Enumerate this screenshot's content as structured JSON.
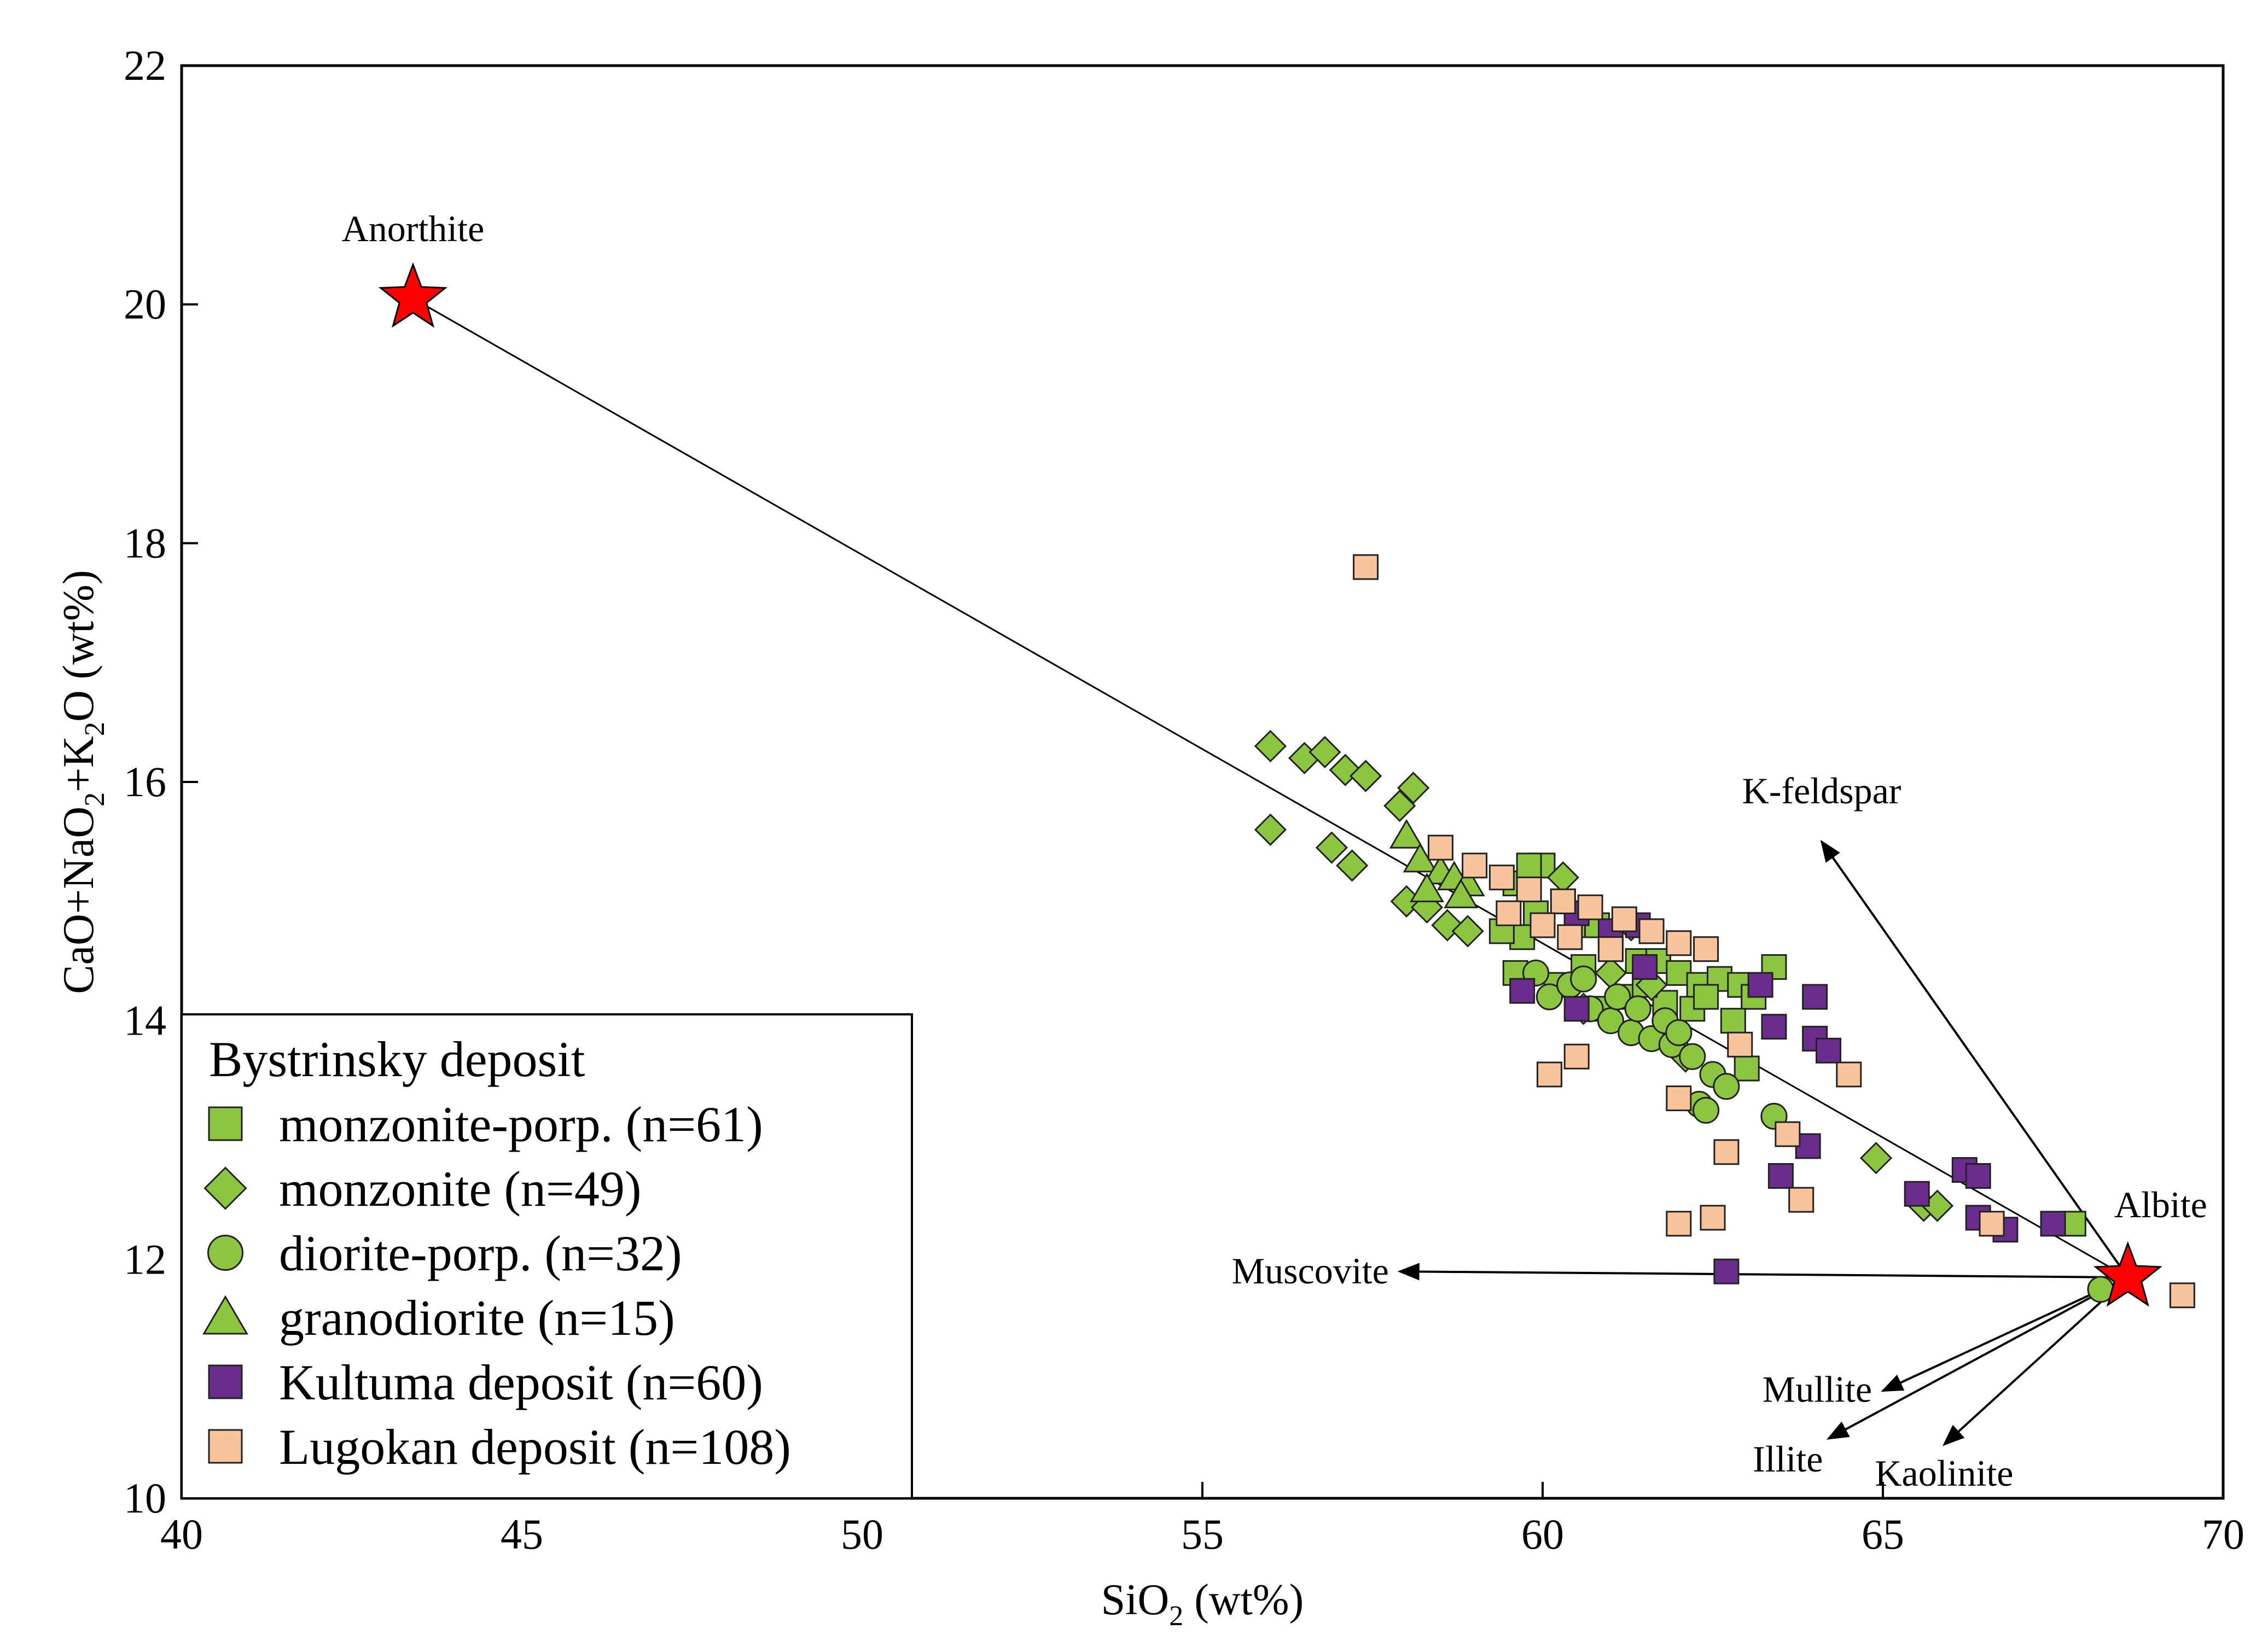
{
  "chart_data": {
    "type": "scatter",
    "title": "",
    "xlabel": "SiO2 (wt%)",
    "ylabel": "CaO+NaO2+K2O (wt%)",
    "xlabel_parts": [
      "SiO",
      "2",
      " (wt%)"
    ],
    "ylabel_parts": [
      "CaO+NaO",
      "2",
      "+K",
      "2",
      "O (wt%)"
    ],
    "xlim": [
      40,
      70
    ],
    "ylim": [
      10,
      22
    ],
    "xticks": [
      40,
      45,
      50,
      55,
      60,
      65,
      70
    ],
    "yticks": [
      10,
      12,
      14,
      16,
      18,
      20,
      22
    ],
    "grid": false,
    "legend_position": "bottom-left",
    "legend_title": "Bystrinsky deposit",
    "colors": {
      "green": "#8cc640",
      "purple": "#6a2d8c",
      "peach": "#f7c49b",
      "star": "#ff0000",
      "stroke": "#222222"
    },
    "reference_points": [
      {
        "name": "Anorthite",
        "x": 43.4,
        "y": 20.05
      },
      {
        "name": "Albite",
        "x": 68.6,
        "y": 11.85
      }
    ],
    "mixing_line": {
      "from": "Anorthite",
      "to": "Albite"
    },
    "vectors": [
      {
        "label": "K-feldspar",
        "to": [
          64.1,
          15.5
        ]
      },
      {
        "label": "Muscovite",
        "to": [
          57.9,
          11.9
        ]
      },
      {
        "label": "Mullite",
        "to": [
          65.0,
          10.9
        ]
      },
      {
        "label": "Illite",
        "to": [
          64.2,
          10.5
        ]
      },
      {
        "label": "Kaolinite",
        "to": [
          65.9,
          10.45
        ]
      }
    ],
    "series": [
      {
        "name": "monzonite-porp. (n=61)",
        "marker": "square",
        "color": "#8cc640",
        "points": [
          [
            59.6,
            15.15
          ],
          [
            60.0,
            15.3
          ],
          [
            59.8,
            15.3
          ],
          [
            60.3,
            15.0
          ],
          [
            59.9,
            14.9
          ],
          [
            60.5,
            14.8
          ],
          [
            60.8,
            14.8
          ],
          [
            59.7,
            14.7
          ],
          [
            59.4,
            14.75
          ],
          [
            61.0,
            14.6
          ],
          [
            61.4,
            14.5
          ],
          [
            61.7,
            14.5
          ],
          [
            62.0,
            14.4
          ],
          [
            62.3,
            14.3
          ],
          [
            62.6,
            14.35
          ],
          [
            62.9,
            14.3
          ],
          [
            63.1,
            14.2
          ],
          [
            63.4,
            14.45
          ],
          [
            60.6,
            14.45
          ],
          [
            60.2,
            14.3
          ],
          [
            61.2,
            14.2
          ],
          [
            61.8,
            14.15
          ],
          [
            62.2,
            14.1
          ],
          [
            62.8,
            14.0
          ],
          [
            63.0,
            13.6
          ],
          [
            59.6,
            14.4
          ],
          [
            60.9,
            14.1
          ],
          [
            61.5,
            14.3
          ],
          [
            62.4,
            14.2
          ],
          [
            67.8,
            12.3
          ]
        ]
      },
      {
        "name": "monzonite (n=49)",
        "marker": "diamond",
        "color": "#8cc640",
        "points": [
          [
            56.0,
            16.3
          ],
          [
            56.5,
            16.2
          ],
          [
            56.8,
            16.25
          ],
          [
            57.1,
            16.1
          ],
          [
            57.4,
            16.05
          ],
          [
            58.1,
            15.95
          ],
          [
            57.9,
            15.8
          ],
          [
            56.0,
            15.6
          ],
          [
            56.9,
            15.45
          ],
          [
            57.2,
            15.3
          ],
          [
            58.0,
            15.0
          ],
          [
            58.3,
            14.95
          ],
          [
            58.6,
            14.8
          ],
          [
            58.9,
            14.75
          ],
          [
            60.3,
            15.2
          ],
          [
            61.3,
            14.8
          ],
          [
            61.6,
            14.3
          ],
          [
            62.1,
            13.7
          ],
          [
            61.9,
            13.9
          ],
          [
            64.9,
            12.85
          ],
          [
            65.6,
            12.45
          ],
          [
            65.8,
            12.45
          ],
          [
            61.0,
            14.4
          ],
          [
            60.6,
            14.1
          ]
        ]
      },
      {
        "name": "diorite-porp. (n=32)",
        "marker": "circle",
        "color": "#8cc640",
        "points": [
          [
            59.9,
            14.4
          ],
          [
            60.1,
            14.2
          ],
          [
            60.4,
            14.3
          ],
          [
            60.7,
            14.1
          ],
          [
            61.0,
            14.0
          ],
          [
            61.3,
            13.9
          ],
          [
            61.6,
            13.85
          ],
          [
            61.9,
            13.8
          ],
          [
            62.2,
            13.7
          ],
          [
            62.5,
            13.55
          ],
          [
            62.7,
            13.45
          ],
          [
            62.3,
            13.3
          ],
          [
            62.4,
            13.25
          ],
          [
            63.4,
            13.2
          ],
          [
            60.6,
            14.35
          ],
          [
            61.1,
            14.2
          ],
          [
            61.4,
            14.1
          ],
          [
            61.8,
            14.0
          ],
          [
            62.0,
            13.9
          ],
          [
            68.2,
            11.75
          ]
        ]
      },
      {
        "name": "granodiorite (n=15)",
        "marker": "triangle",
        "color": "#8cc640",
        "points": [
          [
            58.0,
            15.55
          ],
          [
            58.2,
            15.35
          ],
          [
            58.5,
            15.25
          ],
          [
            58.7,
            15.2
          ],
          [
            58.9,
            15.15
          ],
          [
            58.3,
            15.1
          ],
          [
            58.8,
            15.05
          ]
        ]
      },
      {
        "name": "Kultuma deposit (n=60)",
        "marker": "square",
        "color": "#6a2d8c",
        "points": [
          [
            59.7,
            14.25
          ],
          [
            60.5,
            14.9
          ],
          [
            60.5,
            14.1
          ],
          [
            61.0,
            14.75
          ],
          [
            61.5,
            14.45
          ],
          [
            61.4,
            14.8
          ],
          [
            63.2,
            14.3
          ],
          [
            63.4,
            13.95
          ],
          [
            64.0,
            14.2
          ],
          [
            64.0,
            13.85
          ],
          [
            64.2,
            13.75
          ],
          [
            63.9,
            12.95
          ],
          [
            63.5,
            12.7
          ],
          [
            65.5,
            12.55
          ],
          [
            66.2,
            12.75
          ],
          [
            66.4,
            12.7
          ],
          [
            66.4,
            12.35
          ],
          [
            66.8,
            12.25
          ],
          [
            67.5,
            12.3
          ],
          [
            62.7,
            11.9
          ]
        ]
      },
      {
        "name": "Lugokan deposit (n=108)",
        "marker": "square",
        "color": "#f7c49b",
        "points": [
          [
            57.4,
            17.8
          ],
          [
            58.5,
            15.45
          ],
          [
            59.0,
            15.3
          ],
          [
            59.4,
            15.2
          ],
          [
            59.8,
            15.1
          ],
          [
            60.3,
            15.0
          ],
          [
            60.7,
            14.95
          ],
          [
            61.2,
            14.85
          ],
          [
            61.6,
            14.75
          ],
          [
            62.0,
            14.65
          ],
          [
            62.4,
            14.6
          ],
          [
            59.5,
            14.9
          ],
          [
            60.0,
            14.8
          ],
          [
            60.4,
            14.7
          ],
          [
            61.0,
            14.6
          ],
          [
            60.1,
            13.55
          ],
          [
            60.5,
            13.7
          ],
          [
            62.0,
            13.35
          ],
          [
            62.9,
            13.8
          ],
          [
            63.6,
            13.05
          ],
          [
            64.5,
            13.55
          ],
          [
            62.7,
            12.9
          ],
          [
            63.8,
            12.5
          ],
          [
            62.5,
            12.35
          ],
          [
            62.0,
            12.3
          ],
          [
            66.6,
            12.3
          ],
          [
            69.4,
            11.7
          ]
        ]
      }
    ]
  }
}
